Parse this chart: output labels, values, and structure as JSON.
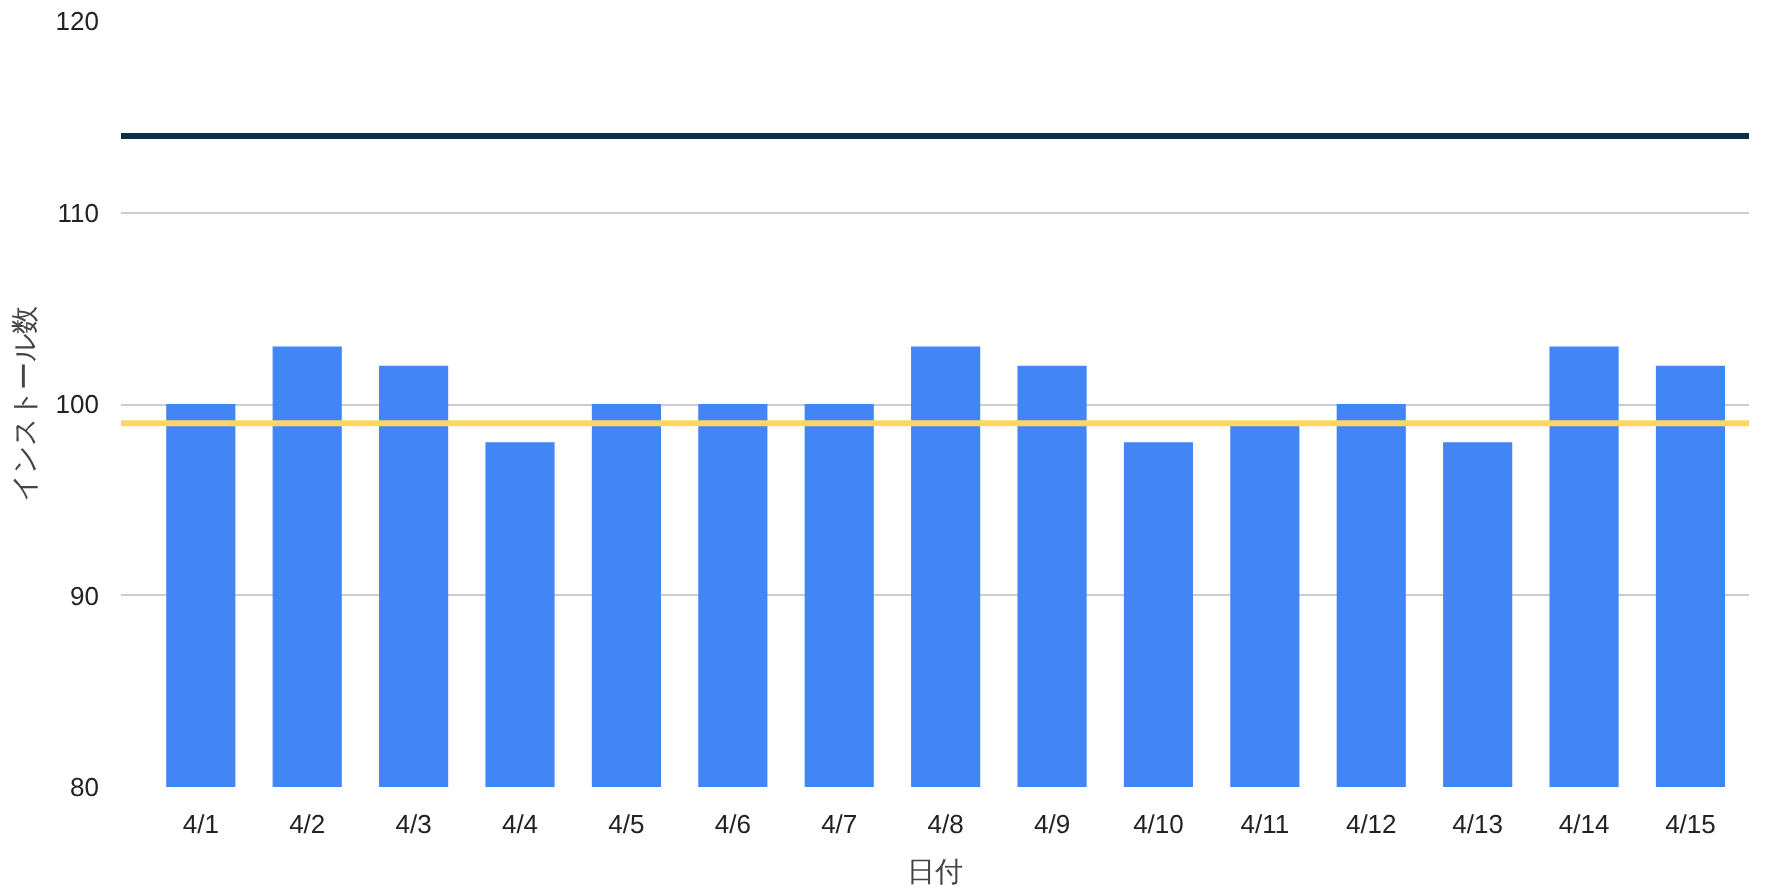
{
  "chart_data": {
    "type": "bar",
    "xlabel": "日付",
    "ylabel": "インストール数",
    "categories": [
      "4/1",
      "4/2",
      "4/3",
      "4/4",
      "4/5",
      "4/6",
      "4/7",
      "4/8",
      "4/9",
      "4/10",
      "4/11",
      "4/12",
      "4/13",
      "4/14",
      "4/15"
    ],
    "values": [
      100,
      103,
      102,
      98,
      100,
      100,
      100,
      103,
      102,
      98,
      99,
      100,
      98,
      103,
      102
    ],
    "color": "#4285f4",
    "ylim": [
      80,
      120
    ],
    "yticks": [
      80,
      90,
      100,
      110,
      120
    ],
    "grid": "y",
    "ref_lines": [
      {
        "axis": "y",
        "value": 114,
        "color": "#0b2f47",
        "line_style": "solid"
      },
      {
        "axis": "y",
        "value": 99,
        "color": "#fdd663",
        "line_style": "solid"
      }
    ]
  }
}
